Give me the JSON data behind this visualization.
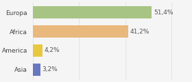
{
  "categories": [
    "Europa",
    "Africa",
    "America",
    "Asia"
  ],
  "values": [
    51.4,
    41.2,
    4.2,
    3.2
  ],
  "bar_colors": [
    "#a8c484",
    "#e8b87c",
    "#e8c840",
    "#6878c0"
  ],
  "labels": [
    "51,4%",
    "41,2%",
    "4,2%",
    "3,2%"
  ],
  "xlim": [
    0,
    68
  ],
  "background_color": "#f5f5f5",
  "label_fontsize": 6.5,
  "tick_fontsize": 6.5,
  "bar_height": 0.62,
  "figwidth": 2.8,
  "figheight": 1.2,
  "dpi": 100
}
